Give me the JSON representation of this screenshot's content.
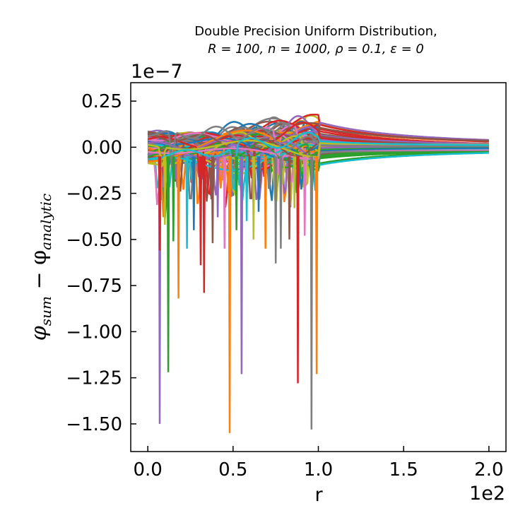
{
  "chart_data": {
    "type": "line",
    "title_line1": "Double Precision Uniform Distribution,",
    "title_line2": "R = 100, n = 1000, ρ = 0.1, ε = 0",
    "xlabel": "r",
    "ylabel_main": "φ",
    "ylabel_sub1": "sum",
    "ylabel_minus": " − φ",
    "ylabel_sub2": "analytic",
    "x_offset_text": "1e2",
    "y_offset_text": "1e−7",
    "xlim": [
      -0.1,
      2.1
    ],
    "ylim": [
      -1.65,
      0.35
    ],
    "xticks": [
      0.0,
      0.5,
      1.0,
      1.5,
      2.0
    ],
    "xtick_labels": [
      "0.0",
      "0.5",
      "1.0",
      "1.5",
      "2.0"
    ],
    "yticks": [
      0.25,
      0.0,
      -0.25,
      -0.5,
      -0.75,
      -1.0,
      -1.25,
      -1.5
    ],
    "ytick_labels": [
      "0.25",
      "0.00",
      "−0.25",
      "−0.50",
      "−0.75",
      "−1.00",
      "−1.25",
      "−1.50"
    ],
    "grid": false,
    "colors": [
      "#1f77b4",
      "#ff7f0e",
      "#2ca02c",
      "#d62728",
      "#9467bd",
      "#8c564b",
      "#e377c2",
      "#7f7f7f",
      "#bcbd22",
      "#17becf"
    ],
    "series_count": 120,
    "spikes": [
      {
        "x": 0.07,
        "y": -1.5,
        "color": "#9467bd"
      },
      {
        "x": 0.12,
        "y": -1.22,
        "color": "#2ca02c"
      },
      {
        "x": 0.48,
        "y": -1.55,
        "color": "#ff7f0e"
      },
      {
        "x": 0.55,
        "y": -1.23,
        "color": "#9467bd"
      },
      {
        "x": 0.88,
        "y": -1.28,
        "color": "#d62728"
      },
      {
        "x": 0.96,
        "y": -1.53,
        "color": "#7f7f7f"
      },
      {
        "x": 0.99,
        "y": -1.23,
        "color": "#ff7f0e"
      },
      {
        "x": 0.18,
        "y": -0.82,
        "color": "#ff7f0e"
      },
      {
        "x": 0.33,
        "y": -0.79,
        "color": "#d62728"
      },
      {
        "x": 0.07,
        "y": -0.56,
        "color": "#d62728"
      },
      {
        "x": 0.23,
        "y": -0.55,
        "color": "#17becf"
      },
      {
        "x": 0.31,
        "y": -0.64,
        "color": "#d62728"
      },
      {
        "x": 0.75,
        "y": -0.63,
        "color": "#7f7f7f"
      },
      {
        "x": 0.78,
        "y": -0.55,
        "color": "#7f7f7f"
      },
      {
        "x": 0.69,
        "y": -0.55,
        "color": "#ff7f0e"
      },
      {
        "x": 0.15,
        "y": -0.51,
        "color": "#2ca02c"
      },
      {
        "x": 0.38,
        "y": -0.52,
        "color": "#8c564b"
      },
      {
        "x": 0.62,
        "y": -0.5,
        "color": "#bcbd22"
      },
      {
        "x": 0.45,
        "y": -0.55,
        "color": "#e377c2"
      },
      {
        "x": 0.83,
        "y": -0.5,
        "color": "#8c564b"
      },
      {
        "x": 0.27,
        "y": -0.45,
        "color": "#1f77b4"
      },
      {
        "x": 0.52,
        "y": -0.45,
        "color": "#2ca02c"
      },
      {
        "x": 0.92,
        "y": -0.48,
        "color": "#e377c2"
      },
      {
        "x": 0.1,
        "y": -0.42,
        "color": "#bcbd22"
      },
      {
        "x": 0.58,
        "y": -0.4,
        "color": "#17becf"
      },
      {
        "x": 0.41,
        "y": -0.38,
        "color": "#9467bd"
      },
      {
        "x": 0.65,
        "y": -0.35,
        "color": "#1f77b4"
      },
      {
        "x": 0.86,
        "y": -0.33,
        "color": "#bcbd22"
      }
    ]
  }
}
